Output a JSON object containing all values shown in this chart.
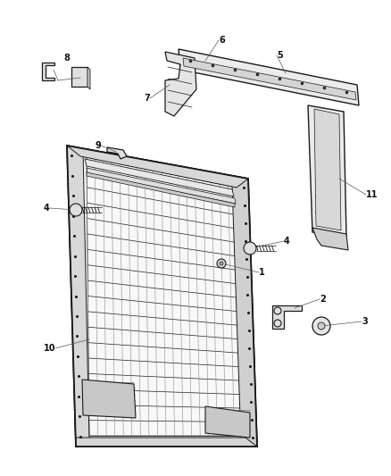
{
  "bg_color": "#ffffff",
  "fig_width": 4.38,
  "fig_height": 5.33,
  "dpi": 100,
  "line_color": "#1a1a1a",
  "lw": 0.7
}
